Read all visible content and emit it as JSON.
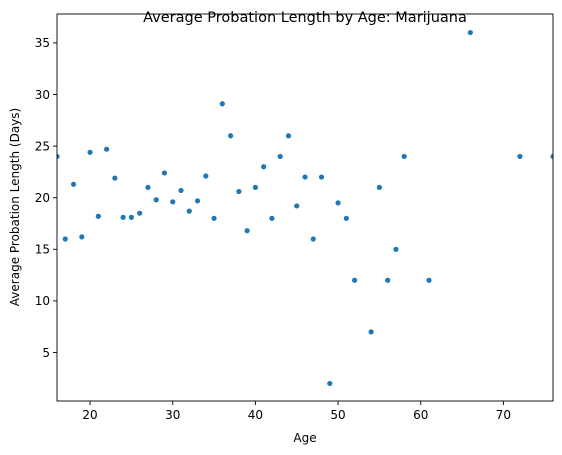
{
  "chart_data": {
    "type": "scatter",
    "title": "Average Probation Length by Age: Marijuana",
    "xlabel": "Age",
    "ylabel": "Average Probation Length (Days)",
    "xlim": [
      16,
      76
    ],
    "ylim": [
      0.3,
      37.8
    ],
    "xticks": [
      20,
      30,
      40,
      50,
      60,
      70
    ],
    "yticks": [
      5,
      10,
      15,
      20,
      25,
      30,
      35
    ],
    "grid": false,
    "marker_color": "#1f77b4",
    "series": [
      {
        "x": [
          16,
          17,
          18,
          19,
          20,
          21,
          22,
          23,
          24,
          25,
          26,
          27,
          28,
          29,
          30,
          31,
          32,
          33,
          34,
          35,
          36,
          37,
          38,
          39,
          40,
          41,
          42,
          43,
          44,
          45,
          46,
          47,
          48,
          49,
          50,
          51,
          52,
          54,
          55,
          56,
          57,
          58,
          61,
          66,
          72,
          76
        ],
        "y": [
          24.0,
          16.0,
          21.3,
          16.2,
          24.4,
          18.2,
          24.7,
          21.9,
          18.1,
          18.1,
          18.5,
          21.0,
          19.8,
          22.4,
          19.6,
          20.7,
          18.7,
          19.7,
          22.1,
          18.0,
          29.1,
          26.0,
          20.6,
          16.8,
          21.0,
          23.0,
          18.0,
          24.0,
          26.0,
          19.2,
          22.0,
          16.0,
          22.0,
          2.0,
          19.5,
          18.0,
          12.0,
          7.0,
          21.0,
          12.0,
          15.0,
          24.0,
          12.0,
          36.0,
          24.0,
          24.0
        ]
      }
    ]
  }
}
